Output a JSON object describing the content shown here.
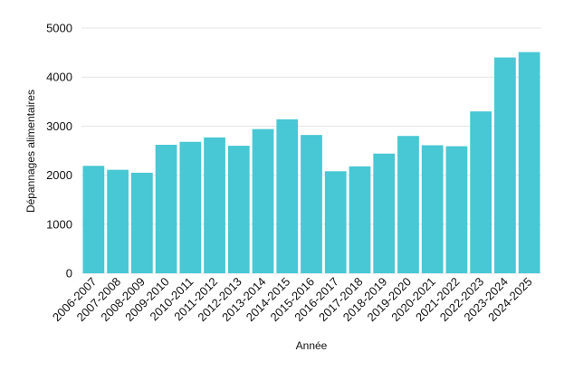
{
  "chart_data": {
    "type": "bar",
    "categories": [
      "2006-2007",
      "2007-2008",
      "2008-2009",
      "2009-2010",
      "2010-2011",
      "2011-2012",
      "2012-2013",
      "2013-2014",
      "2014-2015",
      "2015-2016",
      "2016-2017",
      "2017-2018",
      "2018-2019",
      "2019-2020",
      "2020-2021",
      "2021-2022",
      "2022-2023",
      "2023-2024",
      "2024-2025"
    ],
    "values": [
      2190,
      2110,
      2050,
      2620,
      2680,
      2770,
      2600,
      2940,
      3140,
      2820,
      2080,
      2180,
      2440,
      2800,
      2610,
      2590,
      3300,
      4400,
      4510
    ],
    "xlabel": "Année",
    "ylabel": "Dépannages alimentaires",
    "ylim": [
      0,
      5000
    ],
    "yticks": [
      0,
      1000,
      2000,
      3000,
      4000,
      5000
    ],
    "grid": true,
    "legend": "none",
    "colors": {
      "bar": "#48c7d4",
      "grid": "#e4e4e4",
      "text": "#111111"
    }
  }
}
